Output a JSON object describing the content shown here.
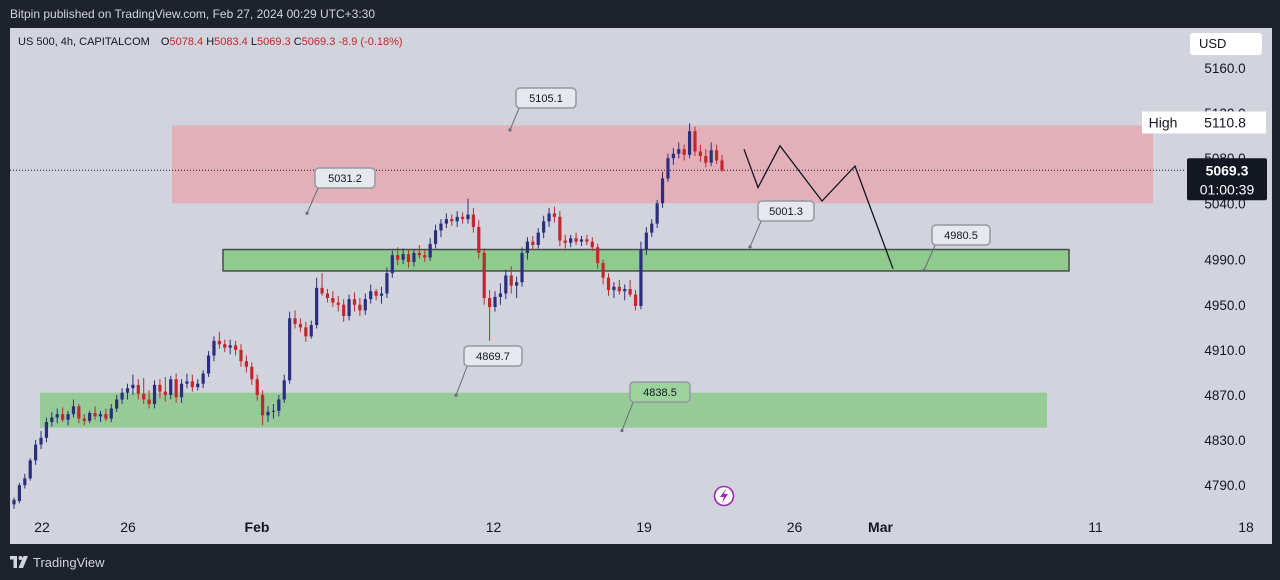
{
  "header": {
    "publisher_line": "Bitpin published on TradingView.com, Feb 27, 2024 00:29 UTC+3:30"
  },
  "footer": {
    "brand": "TradingView"
  },
  "legend": {
    "symbol": "US 500, 4h, CAPITALCOM",
    "open_label": "O",
    "open": "5078.4",
    "high_label": "H",
    "high": "5083.4",
    "low_label": "L",
    "low": "5069.3",
    "close_label": "C",
    "close": "5069.3",
    "change": "-8.9 (-0.18%)"
  },
  "currency": "USD",
  "colors": {
    "up": "#2b2e7f",
    "down": "#c2262e",
    "resistance_zone": "#e8a4ae",
    "support_zone": "#8cc98c",
    "background": "#d1d4dc"
  },
  "chart_data": {
    "type": "candlestick",
    "y_axis": {
      "ticks": [
        5160.0,
        5120.0,
        5080.0,
        5040.0,
        4990.0,
        4950.0,
        4910.0,
        4870.0,
        4830.0,
        4790.0
      ],
      "labels": [
        "5160.0",
        "5120.0",
        "5080.0",
        "5040.0",
        "4990.0",
        "4950.0",
        "4910.0",
        "4870.0",
        "4830.0",
        "4790.0"
      ]
    },
    "x_axis": {
      "labels": [
        {
          "text": "22",
          "date": "2024-01-22",
          "bold": false
        },
        {
          "text": "26",
          "date": "2024-01-26",
          "bold": false
        },
        {
          "text": "Feb",
          "date": "2024-02-01",
          "bold": true
        },
        {
          "text": "12",
          "date": "2024-02-12",
          "bold": false
        },
        {
          "text": "19",
          "date": "2024-02-19",
          "bold": false
        },
        {
          "text": "26",
          "date": "2024-02-26",
          "bold": false
        },
        {
          "text": "Mar",
          "date": "2024-03-01",
          "bold": true
        },
        {
          "text": "11",
          "date": "2024-03-11",
          "bold": false
        },
        {
          "text": "18",
          "date": "2024-03-18",
          "bold": false
        }
      ]
    },
    "price_tags": {
      "high_label": "High",
      "high_value": "5110.8",
      "last_price": "5069.3",
      "countdown": "01:00:39",
      "last_price_value": 5069.3
    },
    "zones": [
      {
        "kind": "resistance",
        "top": 5109,
        "bottom": 5040
      },
      {
        "kind": "mid-support",
        "top": 4999,
        "bottom": 4980
      },
      {
        "kind": "support",
        "top": 4872,
        "bottom": 4841
      }
    ],
    "annotations": [
      {
        "text": "5105.1",
        "price": 5105.1
      },
      {
        "text": "5031.2",
        "price": 5031.2
      },
      {
        "text": "5001.3",
        "price": 5001.3
      },
      {
        "text": "4980.5",
        "price": 4980.5
      },
      {
        "text": "4869.7",
        "price": 4869.7
      },
      {
        "text": "4838.5",
        "price": 4838.5
      }
    ],
    "projection": [
      5088,
      5054,
      5091,
      5042,
      5073,
      4982
    ],
    "candles": [
      [
        4773,
        4779,
        4769,
        4777
      ],
      [
        4776,
        4792,
        4774,
        4790
      ],
      [
        4790,
        4800,
        4787,
        4796
      ],
      [
        4796,
        4814,
        4794,
        4812
      ],
      [
        4812,
        4830,
        4808,
        4826
      ],
      [
        4826,
        4838,
        4822,
        4832
      ],
      [
        4832,
        4850,
        4828,
        4846
      ],
      [
        4846,
        4855,
        4842,
        4850
      ],
      [
        4850,
        4858,
        4845,
        4853
      ],
      [
        4853,
        4859,
        4846,
        4848
      ],
      [
        4848,
        4856,
        4843,
        4853
      ],
      [
        4853,
        4866,
        4850,
        4860
      ],
      [
        4860,
        4862,
        4845,
        4849
      ],
      [
        4849,
        4853,
        4843,
        4847
      ],
      [
        4847,
        4856,
        4845,
        4854
      ],
      [
        4854,
        4860,
        4848,
        4851
      ],
      [
        4851,
        4856,
        4846,
        4853
      ],
      [
        4853,
        4858,
        4847,
        4849
      ],
      [
        4849,
        4862,
        4846,
        4858
      ],
      [
        4858,
        4870,
        4855,
        4866
      ],
      [
        4866,
        4876,
        4862,
        4872
      ],
      [
        4872,
        4880,
        4866,
        4876
      ],
      [
        4876,
        4888,
        4870,
        4879
      ],
      [
        4879,
        4884,
        4866,
        4871
      ],
      [
        4871,
        4885,
        4862,
        4866
      ],
      [
        4866,
        4874,
        4858,
        4862
      ],
      [
        4862,
        4883,
        4858,
        4879
      ],
      [
        4879,
        4884,
        4867,
        4873
      ],
      [
        4873,
        4886,
        4864,
        4870
      ],
      [
        4870,
        4887,
        4866,
        4884
      ],
      [
        4884,
        4889,
        4863,
        4868
      ],
      [
        4868,
        4884,
        4863,
        4880
      ],
      [
        4880,
        4889,
        4876,
        4882
      ],
      [
        4882,
        4888,
        4873,
        4877
      ],
      [
        4877,
        4884,
        4874,
        4880
      ],
      [
        4880,
        4892,
        4876,
        4889
      ],
      [
        4889,
        4909,
        4886,
        4905
      ],
      [
        4905,
        4922,
        4900,
        4918
      ],
      [
        4918,
        4926,
        4911,
        4915
      ],
      [
        4915,
        4919,
        4908,
        4912
      ],
      [
        4912,
        4919,
        4906,
        4914
      ],
      [
        4914,
        4918,
        4905,
        4910
      ],
      [
        4910,
        4915,
        4895,
        4900
      ],
      [
        4900,
        4905,
        4890,
        4895
      ],
      [
        4895,
        4899,
        4879,
        4884
      ],
      [
        4884,
        4888,
        4865,
        4870
      ],
      [
        4870,
        4874,
        4843,
        4852
      ],
      [
        4852,
        4860,
        4846,
        4855
      ],
      [
        4855,
        4862,
        4849,
        4856
      ],
      [
        4856,
        4870,
        4851,
        4866
      ],
      [
        4866,
        4888,
        4863,
        4883
      ],
      [
        4883,
        4944,
        4880,
        4938
      ],
      [
        4938,
        4945,
        4929,
        4933
      ],
      [
        4933,
        4938,
        4926,
        4930
      ],
      [
        4930,
        4935,
        4917,
        4922
      ],
      [
        4922,
        4936,
        4920,
        4932
      ],
      [
        4932,
        4974,
        4929,
        4965
      ],
      [
        4965,
        4978,
        4958,
        4960
      ],
      [
        4960,
        4964,
        4952,
        4956
      ],
      [
        4956,
        4962,
        4948,
        4952
      ],
      [
        4952,
        4958,
        4944,
        4950
      ],
      [
        4950,
        4955,
        4935,
        4940
      ],
      [
        4940,
        4959,
        4936,
        4955
      ],
      [
        4955,
        4961,
        4944,
        4950
      ],
      [
        4950,
        4956,
        4940,
        4945
      ],
      [
        4945,
        4960,
        4941,
        4955
      ],
      [
        4955,
        4968,
        4951,
        4962
      ],
      [
        4962,
        4964,
        4954,
        4958
      ],
      [
        4958,
        4966,
        4951,
        4960
      ],
      [
        4960,
        4983,
        4956,
        4978
      ],
      [
        4978,
        4998,
        4974,
        4994
      ],
      [
        4994,
        5001,
        4985,
        4990
      ],
      [
        4990,
        5000,
        4986,
        4995
      ],
      [
        4995,
        4999,
        4983,
        4988
      ],
      [
        4988,
        4999,
        4984,
        4996
      ],
      [
        4996,
        5003,
        4991,
        4994
      ],
      [
        4994,
        4999,
        4988,
        4992
      ],
      [
        4992,
        5009,
        4989,
        5004
      ],
      [
        5004,
        5021,
        5000,
        5016
      ],
      [
        5016,
        5026,
        5010,
        5022
      ],
      [
        5022,
        5031,
        5018,
        5026
      ],
      [
        5026,
        5030,
        5020,
        5024
      ],
      [
        5024,
        5033,
        5019,
        5028
      ],
      [
        5028,
        5032,
        5022,
        5026
      ],
      [
        5026,
        5044,
        5022,
        5030
      ],
      [
        5030,
        5036,
        5014,
        5019
      ],
      [
        5019,
        5025,
        4991,
        4996
      ],
      [
        4996,
        5000,
        4950,
        4956
      ],
      [
        4956,
        4963,
        4918,
        4948
      ],
      [
        4948,
        4962,
        4944,
        4957
      ],
      [
        4957,
        4969,
        4950,
        4960
      ],
      [
        4960,
        4981,
        4955,
        4976
      ],
      [
        4976,
        4984,
        4960,
        4967
      ],
      [
        4967,
        4975,
        4956,
        4970
      ],
      [
        4970,
        5001,
        4966,
        4996
      ],
      [
        4996,
        5010,
        4990,
        5006
      ],
      [
        5006,
        5011,
        4999,
        5003
      ],
      [
        5003,
        5018,
        5000,
        5014
      ],
      [
        5014,
        5029,
        5009,
        5024
      ],
      [
        5024,
        5036,
        5019,
        5031
      ],
      [
        5031,
        5037,
        5023,
        5028
      ],
      [
        5028,
        5033,
        5002,
        5007
      ],
      [
        5007,
        5012,
        5000,
        5005
      ],
      [
        5005,
        5012,
        5001,
        5009
      ],
      [
        5009,
        5014,
        5003,
        5006
      ],
      [
        5006,
        5011,
        5002,
        5008
      ],
      [
        5008,
        5012,
        5003,
        5006
      ],
      [
        5006,
        5010,
        4998,
        5001
      ],
      [
        5001,
        5004,
        4982,
        4987
      ],
      [
        4987,
        4990,
        4968,
        4974
      ],
      [
        4974,
        4978,
        4958,
        4963
      ],
      [
        4963,
        4970,
        4956,
        4966
      ],
      [
        4966,
        4972,
        4959,
        4962
      ],
      [
        4962,
        4968,
        4954,
        4964
      ],
      [
        4964,
        4972,
        4957,
        4959
      ],
      [
        4959,
        4963,
        4945,
        4949
      ],
      [
        4949,
        5006,
        4946,
        4999
      ],
      [
        4999,
        5019,
        4994,
        5014
      ],
      [
        5014,
        5026,
        5010,
        5022
      ],
      [
        5022,
        5043,
        5018,
        5040
      ],
      [
        5040,
        5068,
        5036,
        5062
      ],
      [
        5062,
        5084,
        5059,
        5080
      ],
      [
        5080,
        5089,
        5074,
        5084
      ],
      [
        5084,
        5094,
        5080,
        5088
      ],
      [
        5088,
        5092,
        5078,
        5083
      ],
      [
        5083,
        5111,
        5080,
        5104
      ],
      [
        5104,
        5108,
        5082,
        5086
      ],
      [
        5086,
        5092,
        5077,
        5082
      ],
      [
        5082,
        5088,
        5072,
        5076
      ],
      [
        5076,
        5094,
        5073,
        5087
      ],
      [
        5087,
        5092,
        5075,
        5078
      ],
      [
        5078,
        5083,
        5068,
        5069
      ]
    ]
  }
}
